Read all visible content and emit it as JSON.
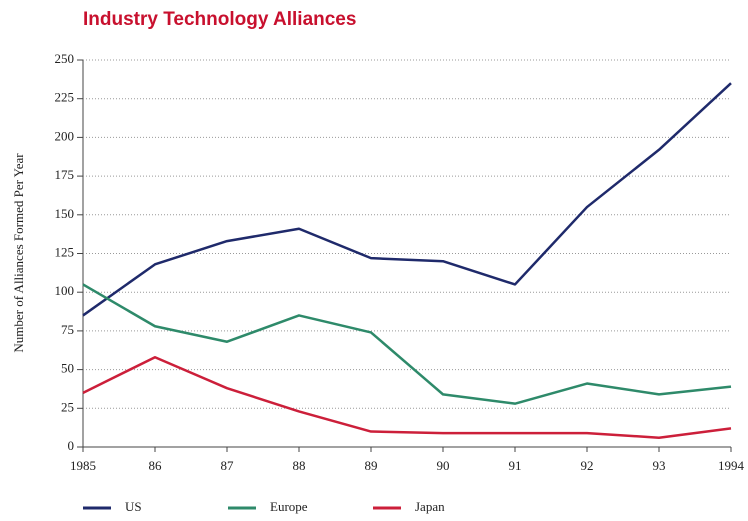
{
  "chart_data": {
    "type": "line",
    "title": "Industry Technology Alliances",
    "y_label": "Number of Alliances Formed Per Year",
    "categories": [
      "1985",
      "86",
      "87",
      "88",
      "89",
      "90",
      "91",
      "92",
      "93",
      "1994"
    ],
    "series": [
      {
        "name": "US",
        "color": "#1f2a6b",
        "values": [
          85,
          118,
          133,
          141,
          122,
          120,
          105,
          155,
          192,
          235
        ]
      },
      {
        "name": "Europe",
        "color": "#2e8a6a",
        "values": [
          105,
          78,
          68,
          85,
          74,
          34,
          28,
          41,
          34,
          39
        ]
      },
      {
        "name": "Japan",
        "color": "#cc1f3a",
        "values": [
          35,
          58,
          38,
          23,
          10,
          9,
          9,
          9,
          6,
          12
        ]
      }
    ],
    "ylim": [
      0,
      250
    ],
    "yticks": [
      0,
      25,
      50,
      75,
      100,
      125,
      150,
      175,
      200,
      225,
      250
    ],
    "grid": true,
    "legend": "bottom"
  }
}
